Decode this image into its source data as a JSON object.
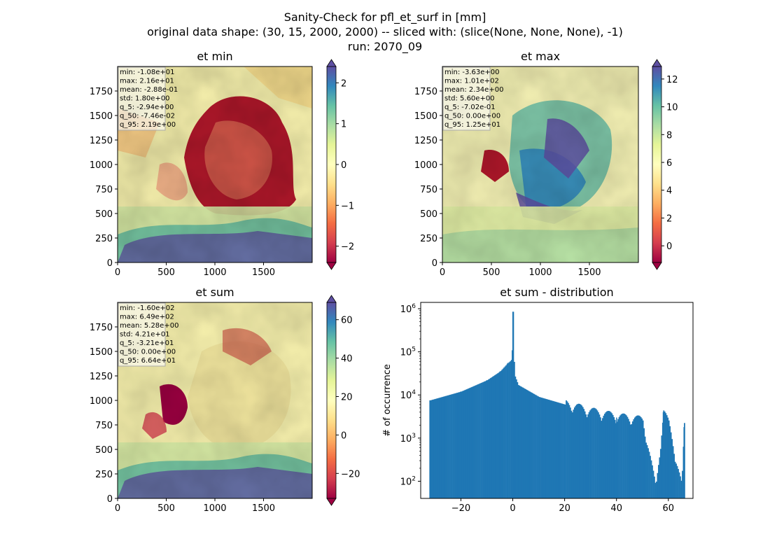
{
  "figure": {
    "title_lines": [
      "Sanity-Check for pfl_et_surf in [mm]",
      "original data shape: (30, 15, 2000, 2000) -- sliced with: (slice(None, None, None), -1)",
      "run: 2070_09"
    ]
  },
  "chart_data": [
    {
      "type": "heatmap",
      "title": "et min",
      "x_ticks": [
        0,
        500,
        1000,
        1500
      ],
      "y_ticks": [
        0,
        250,
        500,
        750,
        1000,
        1250,
        1500,
        1750
      ],
      "xlim": [
        0,
        2000
      ],
      "ylim": [
        0,
        2000
      ],
      "colorbar": {
        "ticks": [
          2,
          1,
          0,
          -1,
          -2
        ],
        "tick_labels": [
          "2",
          "1",
          "0",
          "−1",
          "−2"
        ],
        "range": [
          -2.4,
          2.4
        ],
        "colormap": "Spectral",
        "extend": "both"
      },
      "stats": [
        "min: -1.08e+01",
        "max: 2.16e+01",
        "mean: -2.88e-01",
        "std: 1.80e+00",
        "q_5: -2.94e+00",
        "q_50: -7.46e-02",
        "q_95: 2.19e+00"
      ]
    },
    {
      "type": "heatmap",
      "title": "et max",
      "x_ticks": [
        0,
        500,
        1000,
        1500
      ],
      "y_ticks": [
        0,
        250,
        500,
        750,
        1000,
        1250,
        1500,
        1750
      ],
      "xlim": [
        0,
        2000
      ],
      "ylim": [
        0,
        2000
      ],
      "colorbar": {
        "ticks": [
          12,
          10,
          8,
          6,
          4,
          2,
          0
        ],
        "tick_labels": [
          "12",
          "10",
          "8",
          "6",
          "4",
          "2",
          "0"
        ],
        "range": [
          -1.2,
          12.9
        ],
        "colormap": "Spectral",
        "extend": "both"
      },
      "stats": [
        "min: -3.63e+00",
        "max: 1.01e+02",
        "mean: 2.34e+00",
        "std: 5.60e+00",
        "q_5: -7.02e-01",
        "q_50: 0.00e+00",
        "q_95: 1.25e+01"
      ]
    },
    {
      "type": "heatmap",
      "title": "et sum",
      "x_ticks": [
        0,
        500,
        1000,
        1500
      ],
      "y_ticks": [
        0,
        250,
        500,
        750,
        1000,
        1250,
        1500,
        1750
      ],
      "xlim": [
        0,
        2000
      ],
      "ylim": [
        0,
        2000
      ],
      "colorbar": {
        "ticks": [
          60,
          40,
          20,
          0,
          -20
        ],
        "tick_labels": [
          "60",
          "40",
          "20",
          "0",
          "−20"
        ],
        "range": [
          -33,
          69
        ],
        "colormap": "Spectral",
        "extend": "both"
      },
      "stats": [
        "min: -1.60e+02",
        "max: 6.49e+02",
        "mean: 5.28e+00",
        "std: 4.21e+01",
        "q_5: -3.21e+01",
        "q_50: 0.00e+00",
        "q_95: 6.64e+01"
      ]
    },
    {
      "type": "bar",
      "title": "et sum - distribution",
      "ylabel": "# of occurrence",
      "yscale": "log",
      "x_ticks": [
        -20,
        0,
        20,
        40,
        60
      ],
      "x_tick_labels": [
        "−20",
        "0",
        "20",
        "40",
        "60"
      ],
      "y_ticks": [
        100,
        1000,
        10000,
        100000,
        1000000
      ],
      "xlim": [
        -35.5,
        69.5
      ],
      "ylim": [
        40,
        1400000
      ],
      "color": "#1f77b4",
      "x": [
        -32,
        -20,
        -10,
        -5,
        -2,
        -0.5,
        0,
        0.5,
        2,
        10,
        20,
        30,
        40,
        50,
        55,
        58,
        60,
        65,
        66
      ],
      "y": [
        7500,
        12000,
        22000,
        35000,
        55000,
        65000,
        850000,
        30000,
        17000,
        9000,
        6000,
        4000,
        3000,
        2500,
        65,
        4000,
        2000,
        70,
        1800
      ]
    }
  ]
}
